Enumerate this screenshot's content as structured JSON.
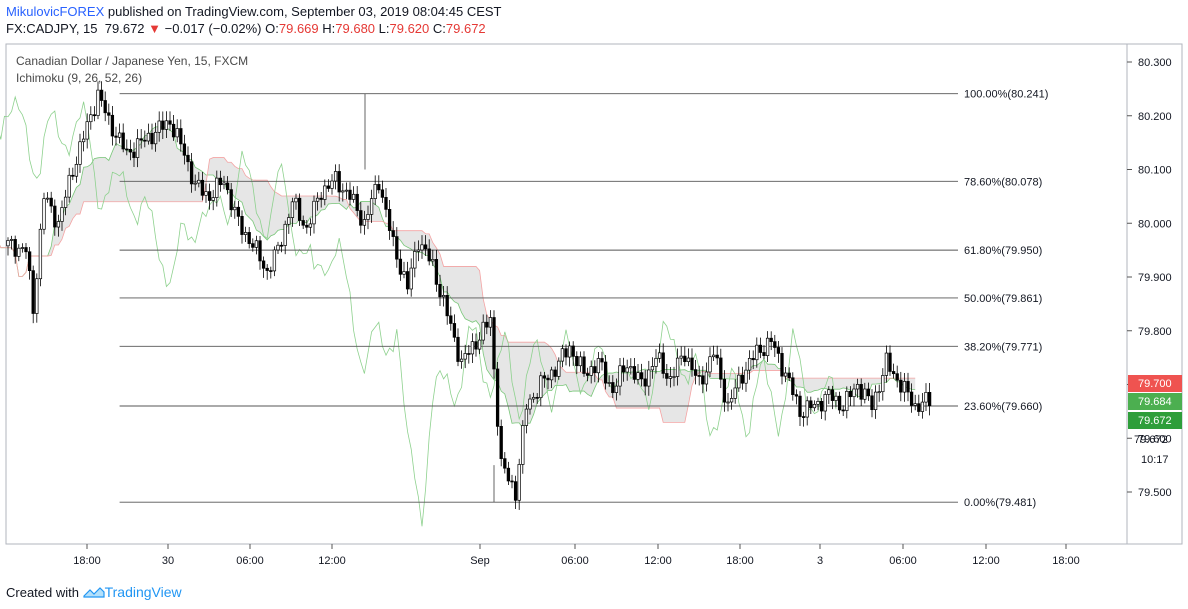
{
  "header": {
    "author": "MikulovicFOREX",
    "published_text": " published on TradingView.com, September 03, 2019 08:04:45 CEST",
    "symbol": "FX:CADJPY, 15",
    "last": "79.672",
    "change_arrow": "▼",
    "change": "−0.017 (−0.02%)",
    "o_label": "O:",
    "o_value": "79.669",
    "h_label": "H:",
    "h_value": "79.680",
    "l_label": "L:",
    "l_value": "79.620",
    "c_label": "C:",
    "c_value": "79.672"
  },
  "chart_title": "Canadian Dollar / Japanese Yen, 15, FXCM",
  "indicator_label": "Ichimoku (9, 26, 52, 26)",
  "footer": {
    "created_with": "Created with",
    "brand": "TradingView"
  },
  "colors": {
    "down_candle": "#000000",
    "up_candle": "#ffffff",
    "fib_line": "#555555",
    "cloud_fill": "#d6d6d6",
    "senkou_a": "#7ac77a",
    "senkou_b": "#f4a3a3",
    "chikou": "#8ed18e",
    "badge_red": "#ef5350",
    "badge_green": "#4caf50",
    "badge_dark_green": "#2e9e3a"
  },
  "chart_data": {
    "type": "candlestick",
    "symbol": "FX:CADJPY",
    "interval": "15",
    "ylim": [
      79.4,
      80.33
    ],
    "y_ticks": [
      "80.300",
      "80.200",
      "80.100",
      "80.000",
      "79.900",
      "79.800",
      "79.700",
      "79.600",
      "79.500"
    ],
    "x_ticks": [
      "18:00",
      "30",
      "06:00",
      "12:00",
      "Sep",
      "06:00",
      "12:00",
      "18:00",
      "3",
      "06:00",
      "12:00",
      "18:00"
    ],
    "grid": false,
    "fibonacci": [
      {
        "label": "100.00%(80.241)",
        "price": 80.241
      },
      {
        "label": "78.60%(80.078)",
        "price": 80.078
      },
      {
        "label": "61.80%(79.950)",
        "price": 79.95
      },
      {
        "label": "50.00%(79.861)",
        "price": 79.861
      },
      {
        "label": "38.20%(79.771)",
        "price": 79.771
      },
      {
        "label": "23.60%(79.660)",
        "price": 79.66
      },
      {
        "label": "0.00%(79.481)",
        "price": 79.481
      }
    ],
    "price_badges": [
      {
        "text": "79.700",
        "price": 79.7,
        "color": "#ef5350"
      },
      {
        "text": "79.684",
        "price": 79.684,
        "color": "#4caf50"
      },
      {
        "text": "79.672",
        "price": 79.672,
        "color": "#2e9e3a"
      }
    ],
    "extra_axis_labels": [
      {
        "text": "79.672"
      },
      {
        "text": "10:17"
      }
    ],
    "close_path": [
      [
        0,
        79.96
      ],
      [
        5,
        79.95
      ],
      [
        7,
        79.84
      ],
      [
        10,
        80.05
      ],
      [
        14,
        80.0
      ],
      [
        18,
        80.1
      ],
      [
        22,
        80.18
      ],
      [
        25,
        80.24
      ],
      [
        28,
        80.19
      ],
      [
        33,
        80.13
      ],
      [
        37,
        80.15
      ],
      [
        41,
        80.17
      ],
      [
        45,
        80.19
      ],
      [
        49,
        80.13
      ],
      [
        52,
        80.07
      ],
      [
        56,
        80.05
      ],
      [
        60,
        80.08
      ],
      [
        64,
        80.0
      ],
      [
        68,
        79.96
      ],
      [
        72,
        79.91
      ],
      [
        75,
        79.95
      ],
      [
        79,
        80.04
      ],
      [
        83,
        79.99
      ],
      [
        87,
        80.06
      ],
      [
        91,
        80.08
      ],
      [
        95,
        80.05
      ],
      [
        99,
        80.0
      ],
      [
        103,
        80.08
      ],
      [
        107,
        79.96
      ],
      [
        111,
        79.88
      ],
      [
        114,
        79.97
      ],
      [
        118,
        79.92
      ],
      [
        122,
        79.83
      ],
      [
        126,
        79.74
      ],
      [
        130,
        79.78
      ],
      [
        134,
        79.82
      ],
      [
        137,
        79.55
      ],
      [
        141,
        79.5
      ],
      [
        144,
        79.66
      ],
      [
        148,
        79.7
      ],
      [
        152,
        79.73
      ],
      [
        156,
        79.77
      ],
      [
        160,
        79.72
      ],
      [
        164,
        79.74
      ],
      [
        168,
        79.69
      ],
      [
        172,
        79.74
      ],
      [
        176,
        79.7
      ],
      [
        180,
        79.75
      ],
      [
        184,
        79.71
      ],
      [
        188,
        79.76
      ],
      [
        192,
        79.7
      ],
      [
        196,
        79.76
      ],
      [
        200,
        79.66
      ],
      [
        204,
        79.72
      ],
      [
        208,
        79.76
      ],
      [
        212,
        79.78
      ],
      [
        216,
        79.72
      ],
      [
        220,
        79.65
      ],
      [
        224,
        79.66
      ],
      [
        228,
        79.68
      ],
      [
        232,
        79.66
      ],
      [
        236,
        79.7
      ],
      [
        240,
        79.66
      ],
      [
        244,
        79.74
      ],
      [
        248,
        79.7
      ],
      [
        252,
        79.66
      ],
      [
        256,
        79.67
      ]
    ]
  }
}
